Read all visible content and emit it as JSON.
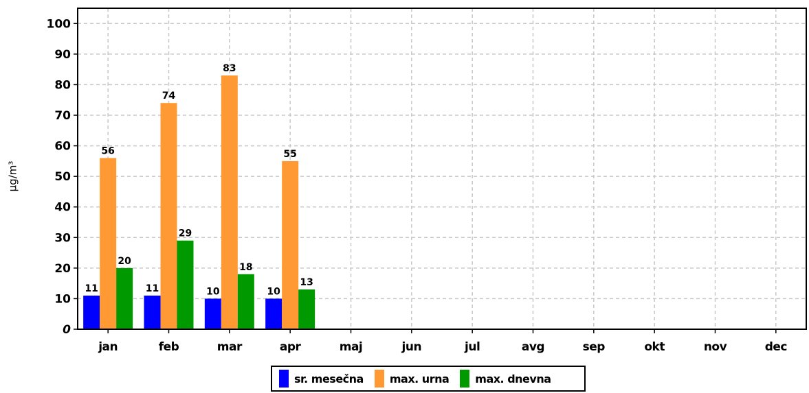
{
  "chart_data": {
    "type": "bar",
    "ylabel": "µg/m³",
    "ylim": [
      0,
      105
    ],
    "yticks": [
      0,
      10,
      20,
      30,
      40,
      50,
      60,
      70,
      80,
      90,
      100
    ],
    "grid": true,
    "legend_position": "bottom-center",
    "categories": [
      "jan",
      "feb",
      "mar",
      "apr",
      "maj",
      "jun",
      "jul",
      "avg",
      "sep",
      "okt",
      "nov",
      "dec"
    ],
    "series": [
      {
        "name": "sr. mesečna",
        "color": "#0000ff",
        "values": [
          11,
          11,
          10,
          10,
          null,
          null,
          null,
          null,
          null,
          null,
          null,
          null
        ]
      },
      {
        "name": "max. urna",
        "color": "#ff9933",
        "values": [
          56,
          74,
          83,
          55,
          null,
          null,
          null,
          null,
          null,
          null,
          null,
          null
        ]
      },
      {
        "name": "max. dnevna",
        "color": "#009900",
        "values": [
          20,
          29,
          18,
          13,
          null,
          null,
          null,
          null,
          null,
          null,
          null,
          null
        ]
      }
    ]
  }
}
